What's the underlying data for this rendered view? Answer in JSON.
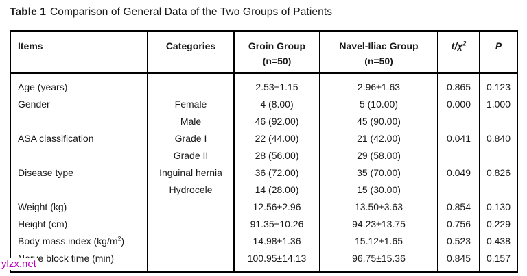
{
  "title": {
    "label": "Table 1",
    "text": "Comparison of General Data of the Two Groups of Patients"
  },
  "table": {
    "headers": {
      "items": "Items",
      "categories": "Categories",
      "group1_line1": "Groin Group",
      "group1_line2": "(n=50)",
      "group2_line1": "Navel-Iliac Group",
      "group2_line2": "(n=50)",
      "stat_pre": "t/χ",
      "stat_sup": "2",
      "p": "P"
    },
    "rows": [
      {
        "item": "Age (years)",
        "category": "",
        "groin": "2.53±1.15",
        "navel": "2.96±1.63",
        "t": "0.865",
        "p": "0.123"
      },
      {
        "item": "Gender",
        "category": "Female",
        "groin": "4 (8.00)",
        "navel": "5 (10.00)",
        "t": "0.000",
        "p": "1.000"
      },
      {
        "item": "",
        "category": "Male",
        "groin": "46 (92.00)",
        "navel": "45 (90.00)",
        "t": "",
        "p": ""
      },
      {
        "item": "ASA classification",
        "category": "Grade I",
        "groin": "22 (44.00)",
        "navel": "21 (42.00)",
        "t": "0.041",
        "p": "0.840"
      },
      {
        "item": "",
        "category": "Grade II",
        "groin": "28 (56.00)",
        "navel": "29 (58.00)",
        "t": "",
        "p": ""
      },
      {
        "item": "Disease type",
        "category": "Inguinal hernia",
        "groin": "36 (72.00)",
        "navel": "35 (70.00)",
        "t": "0.049",
        "p": "0.826"
      },
      {
        "item": "",
        "category": "Hydrocele",
        "groin": "14 (28.00)",
        "navel": "15 (30.00)",
        "t": "",
        "p": ""
      },
      {
        "item": "Weight (kg)",
        "category": "",
        "groin": "12.56±2.96",
        "navel": "13.50±3.63",
        "t": "0.854",
        "p": "0.130"
      },
      {
        "item": "Height (cm)",
        "category": "",
        "groin": "91.35±10.26",
        "navel": "94.23±13.75",
        "t": "0.756",
        "p": "0.229"
      },
      {
        "item_pre": "Body mass index (kg/m",
        "item_sup": "2",
        "item_post": ")",
        "category": "",
        "groin": "14.98±1.36",
        "navel": "15.12±1.65",
        "t": "0.523",
        "p": "0.438"
      },
      {
        "item": "Nerve block time (min)",
        "category": "",
        "groin": "100.95±14.13",
        "navel": "96.75±15.36",
        "t": "0.845",
        "p": "0.157"
      }
    ]
  },
  "watermark": {
    "text": "ylzx.net"
  },
  "colors": {
    "text": "#1a1a1a",
    "border": "#000000",
    "watermark": "#bb00bb",
    "background": "#ffffff"
  }
}
